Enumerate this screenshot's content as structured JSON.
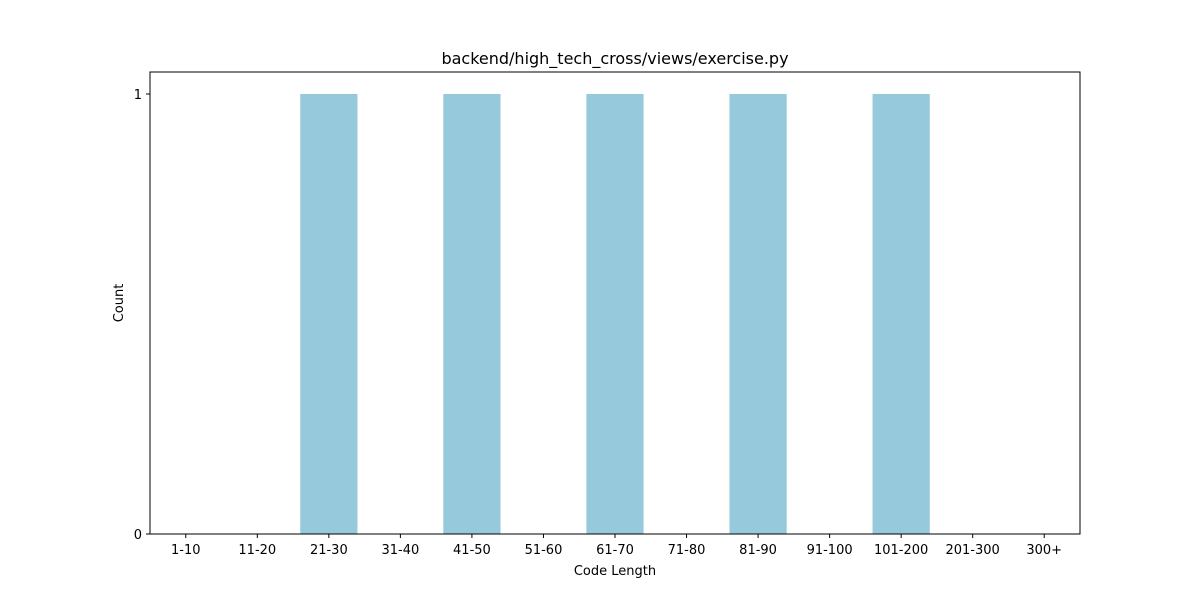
{
  "chart_data": {
    "type": "bar",
    "title": "backend/high_tech_cross/views/exercise.py",
    "xlabel": "Code Length",
    "ylabel": "Count",
    "categories": [
      "1-10",
      "11-20",
      "21-30",
      "31-40",
      "41-50",
      "51-60",
      "61-70",
      "71-80",
      "81-90",
      "91-100",
      "101-200",
      "201-300",
      "300+"
    ],
    "values": [
      0,
      0,
      1,
      0,
      1,
      0,
      1,
      0,
      1,
      0,
      1,
      0,
      0
    ],
    "ylim": [
      0,
      1.05
    ],
    "yticks": [
      0,
      1
    ],
    "grid": false,
    "legend": "none",
    "bar_color": "#96c9dc"
  }
}
